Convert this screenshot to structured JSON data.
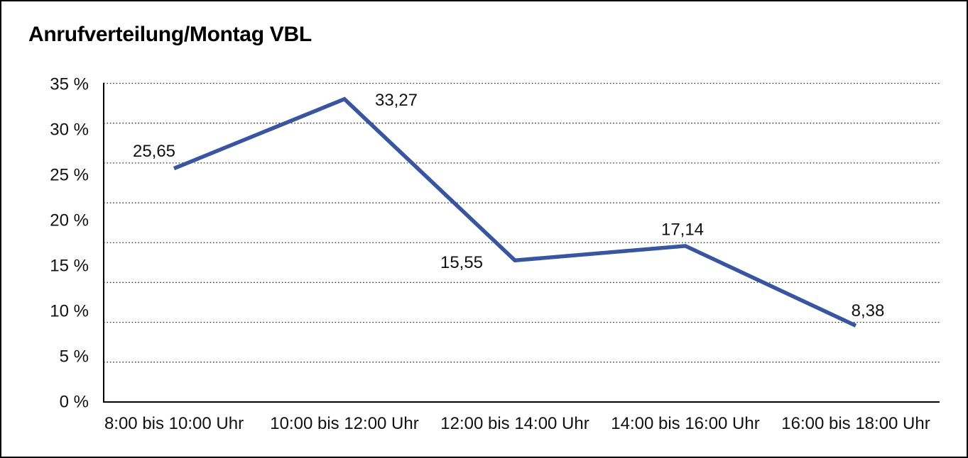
{
  "chart_data": {
    "type": "line",
    "title": "Anrufverteilung/Montag VBL",
    "categories": [
      "8:00 bis 10:00 Uhr",
      "10:00 bis 12:00 Uhr",
      "12:00 bis 14:00 Uhr",
      "14:00 bis 16:00 Uhr",
      "16:00 bis 18:00 Uhr"
    ],
    "values": [
      25.65,
      33.27,
      15.55,
      17.14,
      8.38
    ],
    "point_labels": [
      "25,65",
      "33,27",
      "15,55",
      "17,14",
      "8,38"
    ],
    "y_ticks": [
      "35 %",
      "30 %",
      "25 %",
      "20 %",
      "15 %",
      "10 %",
      "5 %",
      "0 %"
    ],
    "y_tick_values": [
      35,
      30,
      25,
      20,
      15,
      10,
      5,
      0
    ],
    "ylim": [
      0,
      35
    ],
    "xlabel": "",
    "ylabel": "",
    "grid": "dotted-horizontal",
    "legend": "none",
    "colors": {
      "line": "#3A55A0",
      "grid": "#303030",
      "axis": "#000000",
      "text": "#111111",
      "background": "#ffffff",
      "border": "#000000"
    }
  }
}
